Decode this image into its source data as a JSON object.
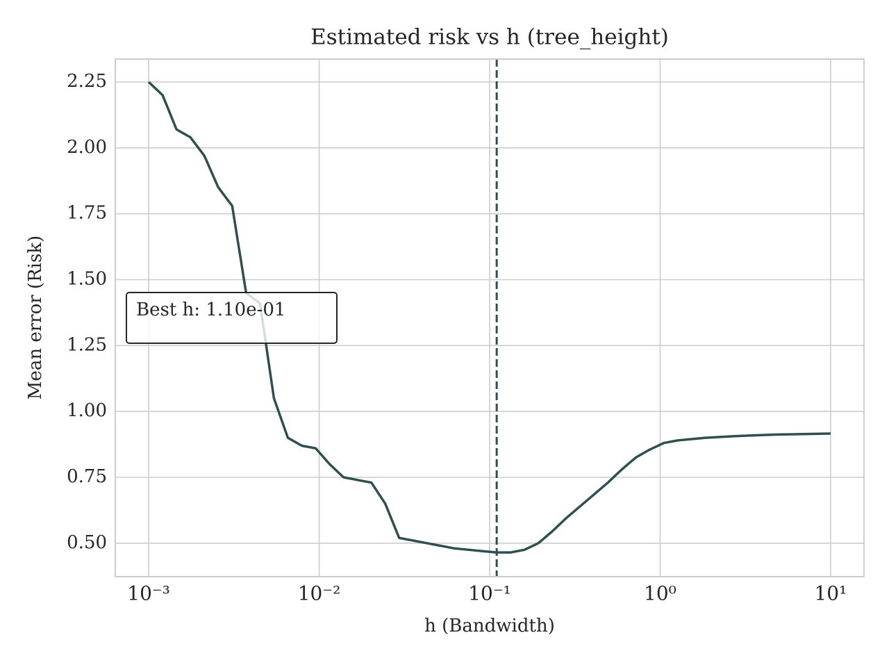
{
  "chart_data": {
    "type": "line",
    "title": "Estimated risk vs h (tree_height)",
    "xlabel": "h (Bandwidth)",
    "ylabel": "Mean error (Risk)",
    "xscale": "log",
    "grid": true,
    "x": [
      0.001,
      0.0012068,
      0.0014563,
      0.0017575,
      0.002121,
      0.0025595,
      0.0030888,
      0.0037276,
      0.0044984,
      0.0054287,
      0.0065513,
      0.007906,
      0.009541,
      0.011514,
      0.013895,
      0.016768,
      0.020236,
      0.024421,
      0.029471,
      0.035565,
      0.042919,
      0.051795,
      0.062506,
      0.075431,
      0.09103,
      0.10985,
      0.13257,
      0.15999,
      0.19307,
      0.233,
      0.28118,
      0.33932,
      0.40949,
      0.49417,
      0.59636,
      0.71969,
      0.86851,
      1.0481,
      1.2649,
      1.5264,
      1.8421,
      2.223,
      2.6827,
      3.2375,
      3.9069,
      4.7149,
      5.6899,
      6.8665,
      8.2864,
      10.0
    ],
    "series": [
      {
        "color": "#2f4f4f",
        "values": [
          2.25,
          2.2,
          2.07,
          2.04,
          1.97,
          1.85,
          1.78,
          1.45,
          1.41,
          1.05,
          0.9,
          0.87,
          0.86,
          0.8,
          0.75,
          0.74,
          0.73,
          0.65,
          0.52,
          0.51,
          0.5,
          0.49,
          0.48,
          0.475,
          0.47,
          0.465,
          0.465,
          0.475,
          0.5,
          0.545,
          0.595,
          0.64,
          0.685,
          0.73,
          0.78,
          0.825,
          0.855,
          0.88,
          0.89,
          0.895,
          0.9,
          0.903,
          0.906,
          0.908,
          0.91,
          0.912,
          0.913,
          0.914,
          0.915,
          0.916
        ]
      }
    ],
    "best_h": 0.11,
    "annotation": "Best h: 1.10e-01",
    "xlim": [
      0.000637,
      15.7
    ],
    "ylim": [
      0.373,
      2.337
    ],
    "xticks": [
      {
        "value": 0.001,
        "label": "10⁻³"
      },
      {
        "value": 0.01,
        "label": "10⁻²"
      },
      {
        "value": 0.1,
        "label": "10⁻¹"
      },
      {
        "value": 1,
        "label": "10⁰"
      },
      {
        "value": 10,
        "label": "10¹"
      }
    ],
    "yticks": [
      {
        "value": 0.5,
        "label": "0.50"
      },
      0.75,
      {
        "value": 1,
        "label": "1.00"
      },
      1.25,
      {
        "value": 1.5,
        "label": "1.50"
      },
      1.75,
      {
        "value": 2,
        "label": "2.00"
      },
      2.25
    ]
  }
}
